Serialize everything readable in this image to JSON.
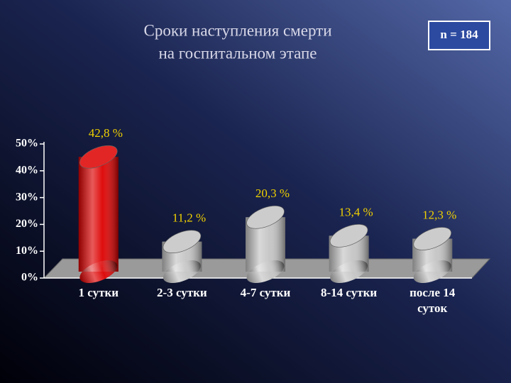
{
  "chart_data": {
    "type": "bar",
    "title": [
      "Сроки наступления смерти",
      "на госпитальном этапе"
    ],
    "annotation": "n = 184",
    "categories": [
      "1 сутки",
      "2-3 сутки",
      "4-7 сутки",
      "8-14 сутки",
      "после 14 суток"
    ],
    "values": [
      42.8,
      11.2,
      20.3,
      13.4,
      12.3
    ],
    "value_labels": [
      "42,8 %",
      "11,2 %",
      "20,3 %",
      "13,4 %",
      "12,3 %"
    ],
    "colors": [
      "#dd0000",
      "#c4c4c4",
      "#c4c4c4",
      "#c4c4c4",
      "#c4c4c4"
    ],
    "ylim": [
      0,
      50
    ],
    "yticks": [
      {
        "value": 0,
        "label": "0%"
      },
      {
        "value": 10,
        "label": "10%"
      },
      {
        "value": 20,
        "label": "20%"
      },
      {
        "value": 30,
        "label": "30%"
      },
      {
        "value": 40,
        "label": "40%"
      },
      {
        "value": 50,
        "label": "50%"
      }
    ]
  }
}
